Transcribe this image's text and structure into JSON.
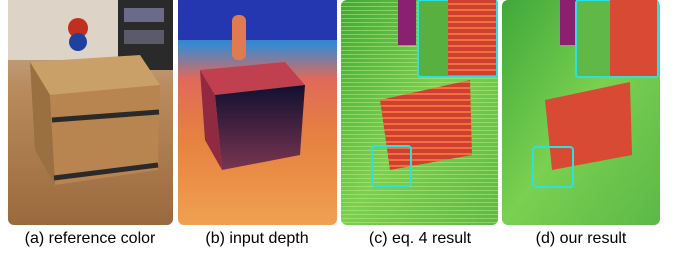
{
  "figure": {
    "panels": [
      {
        "caption": "(a) reference color"
      },
      {
        "caption": "(b) input depth"
      },
      {
        "caption": "(c) eq. 4 result"
      },
      {
        "caption": "(d) our result"
      }
    ]
  }
}
